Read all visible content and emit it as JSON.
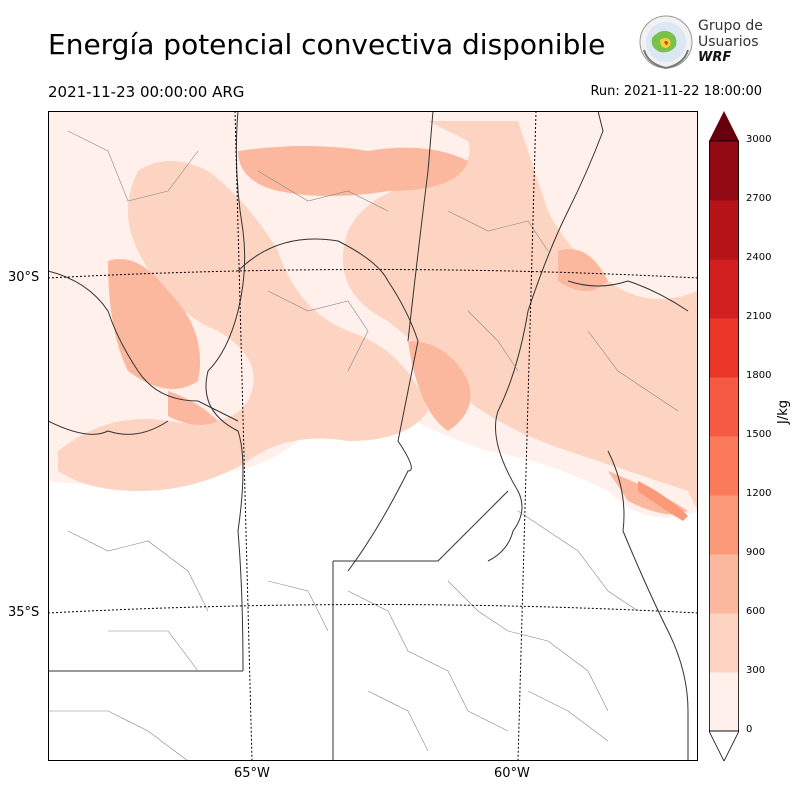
{
  "header": {
    "title": "Energía potencial convectiva disponible",
    "valid_time": "2021-11-23 00:00:00 ARG",
    "run": "Run: 2021-11-22 18:00:00"
  },
  "logo": {
    "line1": "Grupo de",
    "line2": "Usuarios",
    "line3": "WRF",
    "icon": "wrf-users-globe-logo"
  },
  "map": {
    "lat_labels": [
      "30°S",
      "35°S"
    ],
    "lon_labels": [
      "65°W",
      "60°W"
    ]
  },
  "colorbar": {
    "unit": "J/kg",
    "ticks": [
      "3000",
      "2700",
      "2400",
      "2100",
      "1800",
      "1500",
      "1200",
      "900",
      "600",
      "300",
      "0"
    ],
    "colors": [
      "#fff0eb",
      "#fdd3c1",
      "#fcb89e",
      "#fc9978",
      "#fb7a5a",
      "#f65a42",
      "#eb372a",
      "#d21f20",
      "#b51318",
      "#920a14"
    ],
    "extend_top_color": "#67000d",
    "extend_bottom_color": "#ffffff"
  }
}
